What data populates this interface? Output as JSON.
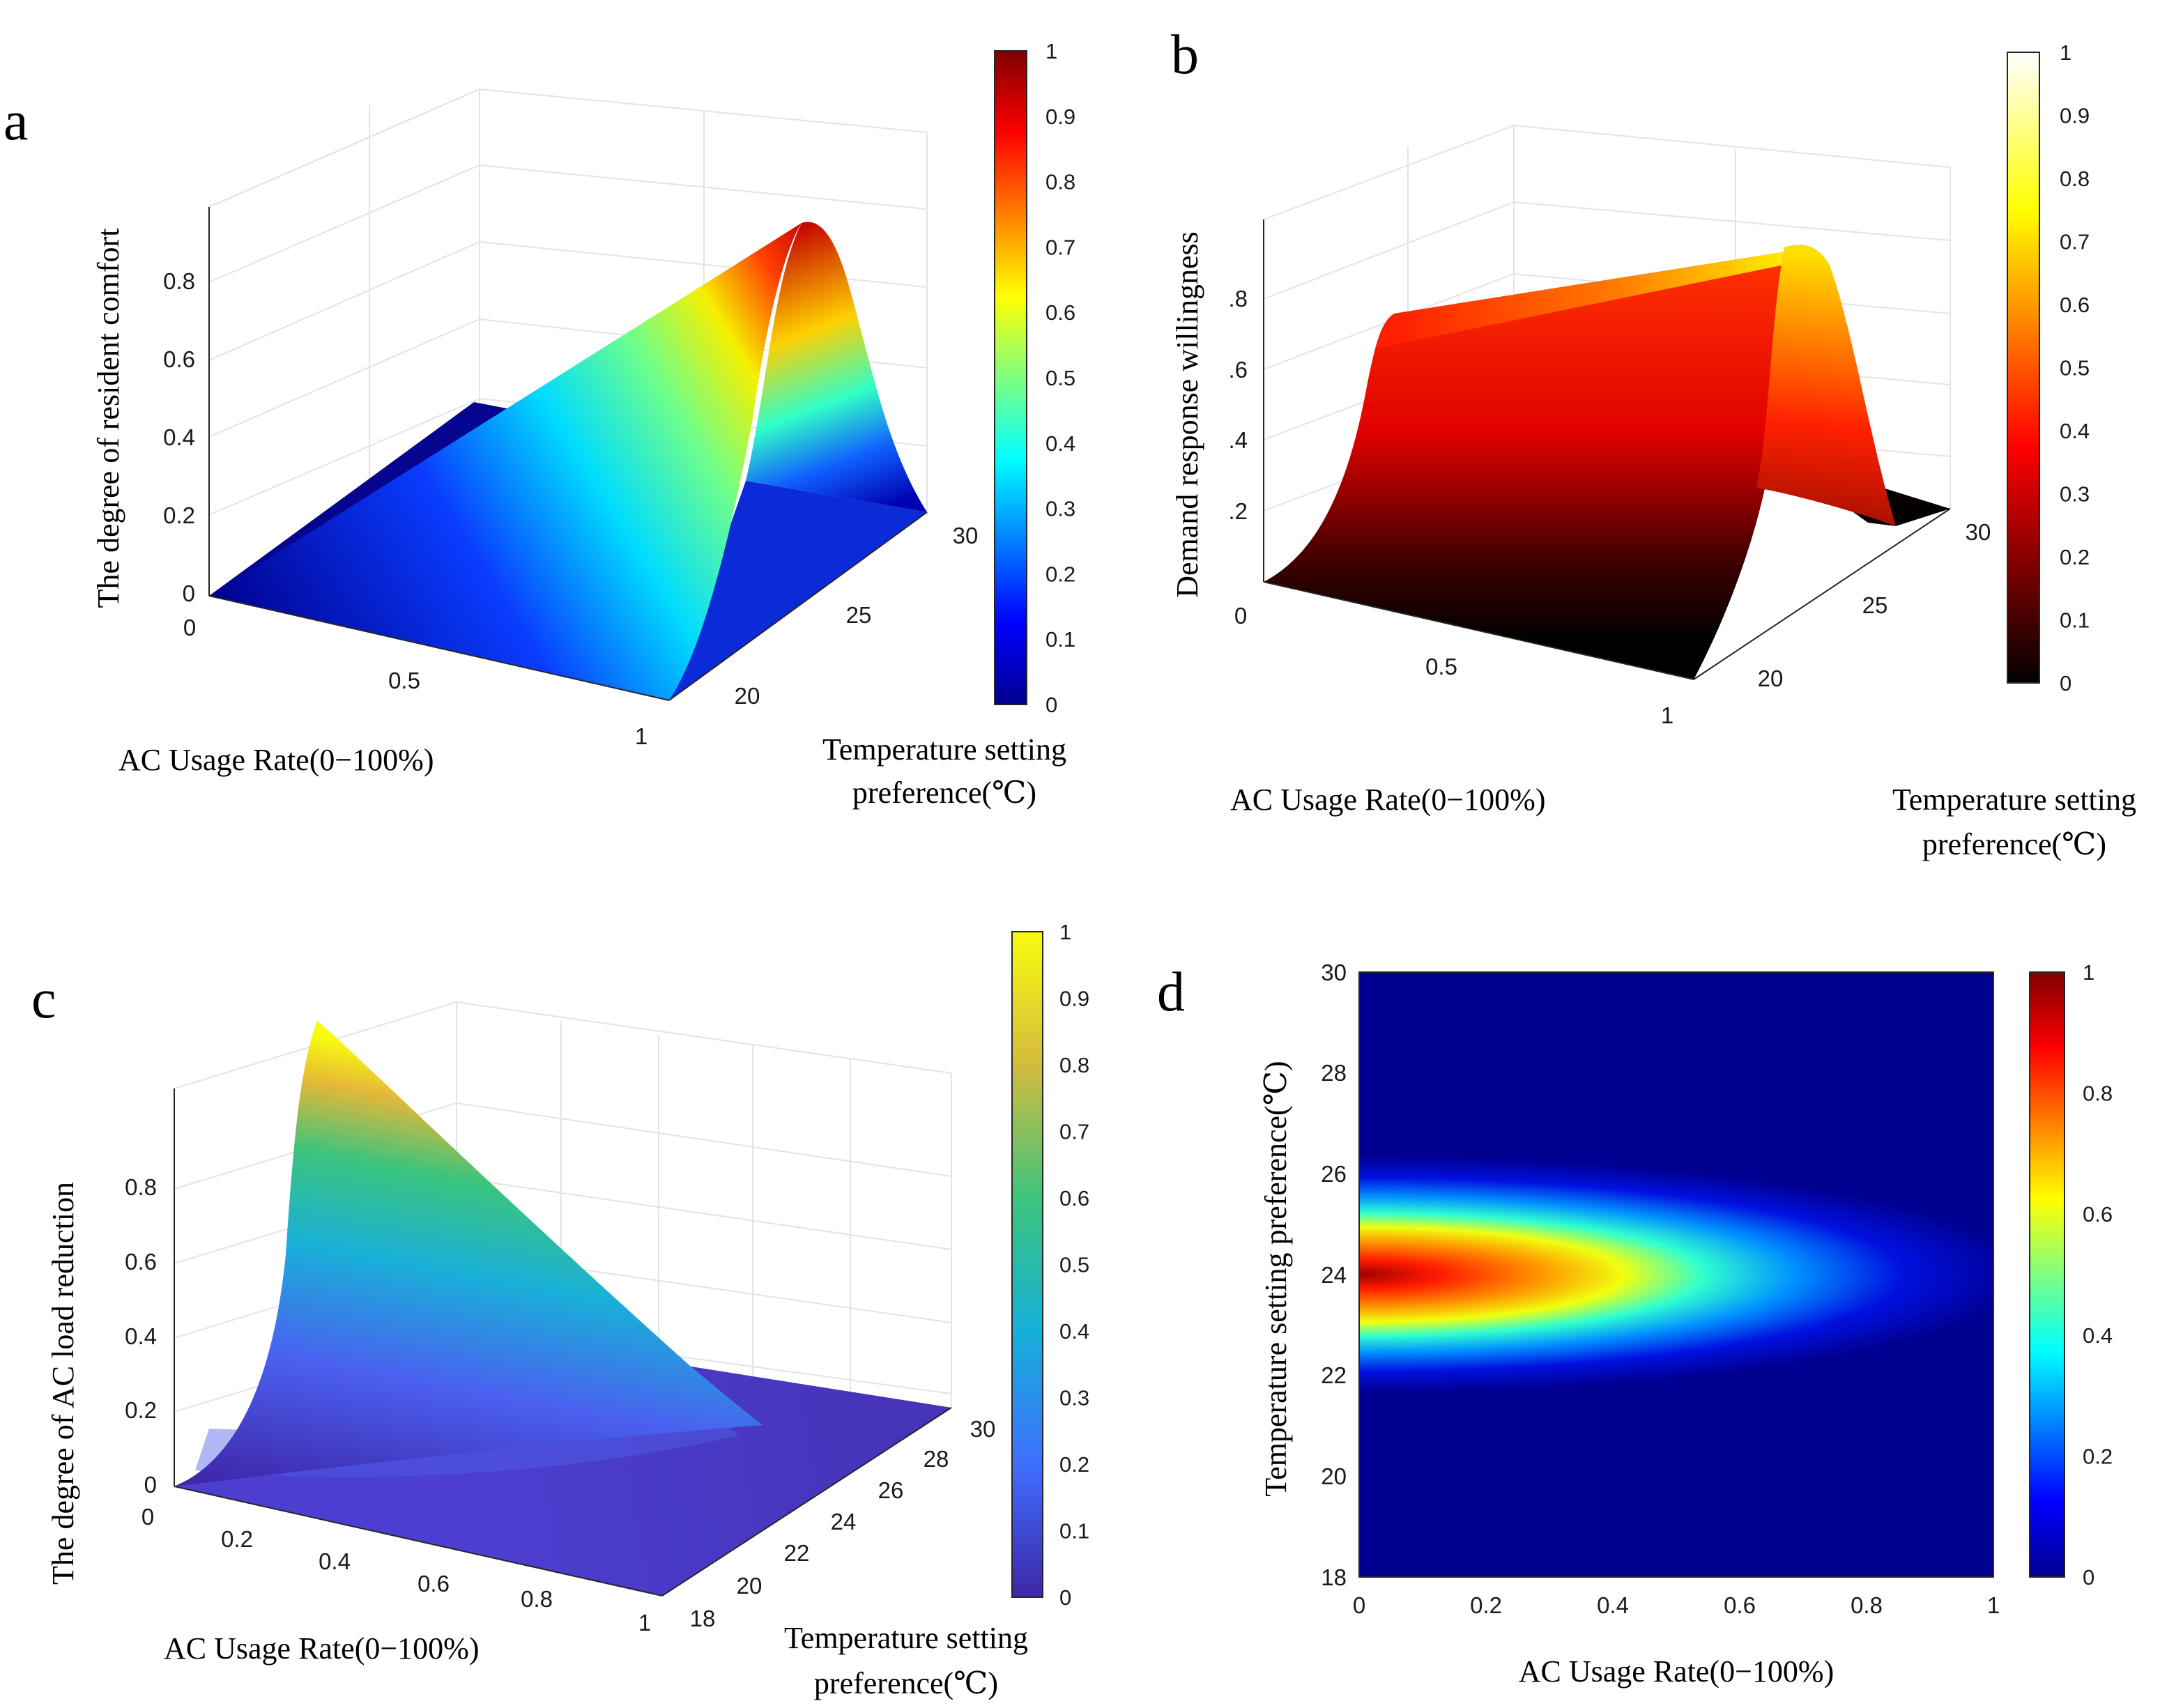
{
  "panels": {
    "a": {
      "label": "a"
    },
    "b": {
      "label": "b"
    },
    "c": {
      "label": "c"
    },
    "d": {
      "label": "d"
    }
  },
  "chart_data": [
    {
      "id": "a",
      "type": "surface",
      "title": "",
      "zlabel": "The degree of resident comfort",
      "xlabel": "AC Usage Rate(0−100%)",
      "ylabel_line1": "Temperature setting",
      "ylabel_line2": "preference(℃)",
      "x_ticks": [
        "0",
        "0.5",
        "1"
      ],
      "y_ticks": [
        "20",
        "25",
        "30"
      ],
      "z_ticks": [
        "0",
        "0.2",
        "0.4",
        "0.6",
        "0.8"
      ],
      "xlim": [
        0,
        1
      ],
      "ylim": [
        18,
        30
      ],
      "zlim": [
        0,
        1
      ],
      "peak": {
        "x": 1,
        "y": 24,
        "z": 1
      },
      "colormap": "jet",
      "colorbar_ticks": [
        "0",
        "0.1",
        "0.2",
        "0.3",
        "0.4",
        "0.5",
        "0.6",
        "0.7",
        "0.8",
        "0.9",
        "1"
      ]
    },
    {
      "id": "b",
      "type": "surface",
      "zlabel": "Demand response willingness",
      "xlabel": "AC Usage Rate(0−100%)",
      "ylabel_line1": "Temperature setting",
      "ylabel_line2": "preference(℃)",
      "x_ticks": [
        "0",
        "0.5",
        "1"
      ],
      "y_ticks": [
        "20",
        "25",
        "30"
      ],
      "z_ticks": [
        ".2",
        ".4",
        ".6",
        ".8"
      ],
      "xlim": [
        0,
        1
      ],
      "ylim": [
        18,
        30
      ],
      "zlim": [
        0,
        1
      ],
      "peak": {
        "x": 0,
        "y": 30,
        "z": 1
      },
      "colormap": "hot",
      "colorbar_ticks": [
        "0",
        "0.1",
        "0.2",
        "0.3",
        "0.4",
        "0.5",
        "0.6",
        "0.7",
        "0.8",
        "0.9",
        "1"
      ]
    },
    {
      "id": "c",
      "type": "surface",
      "zlabel": "The degree of AC load reduction",
      "xlabel": "AC Usage Rate(0−100%)",
      "ylabel_line1": "Temperature setting",
      "ylabel_line2": "preference(℃)",
      "x_ticks": [
        "0",
        "0.2",
        "0.4",
        "0.6",
        "0.8",
        "1"
      ],
      "y_ticks": [
        "18",
        "20",
        "22",
        "24",
        "26",
        "28",
        "30"
      ],
      "z_ticks": [
        "0",
        "0.2",
        "0.4",
        "0.6",
        "0.8"
      ],
      "xlim": [
        0,
        1
      ],
      "ylim": [
        18,
        30
      ],
      "zlim": [
        0,
        1
      ],
      "peak": {
        "x": 0,
        "y": 24,
        "z": 1
      },
      "colormap": "parula",
      "colorbar_ticks": [
        "0",
        "0.1",
        "0.2",
        "0.3",
        "0.4",
        "0.5",
        "0.6",
        "0.7",
        "0.8",
        "0.9",
        "1"
      ]
    },
    {
      "id": "d",
      "type": "heatmap",
      "xlabel": "AC Usage Rate(0−100%)",
      "ylabel": "Temperature setting preference(℃)",
      "x_ticks": [
        "0",
        "0.2",
        "0.4",
        "0.6",
        "0.8",
        "1"
      ],
      "y_ticks": [
        "18",
        "20",
        "22",
        "24",
        "26",
        "28",
        "30"
      ],
      "xlim": [
        0,
        1
      ],
      "ylim": [
        18,
        30
      ],
      "peak": {
        "x": 0,
        "y": 24,
        "z": 1
      },
      "colormap": "jet",
      "colorbar_ticks": [
        "0",
        "0.2",
        "0.4",
        "0.6",
        "0.8",
        "1"
      ]
    }
  ]
}
